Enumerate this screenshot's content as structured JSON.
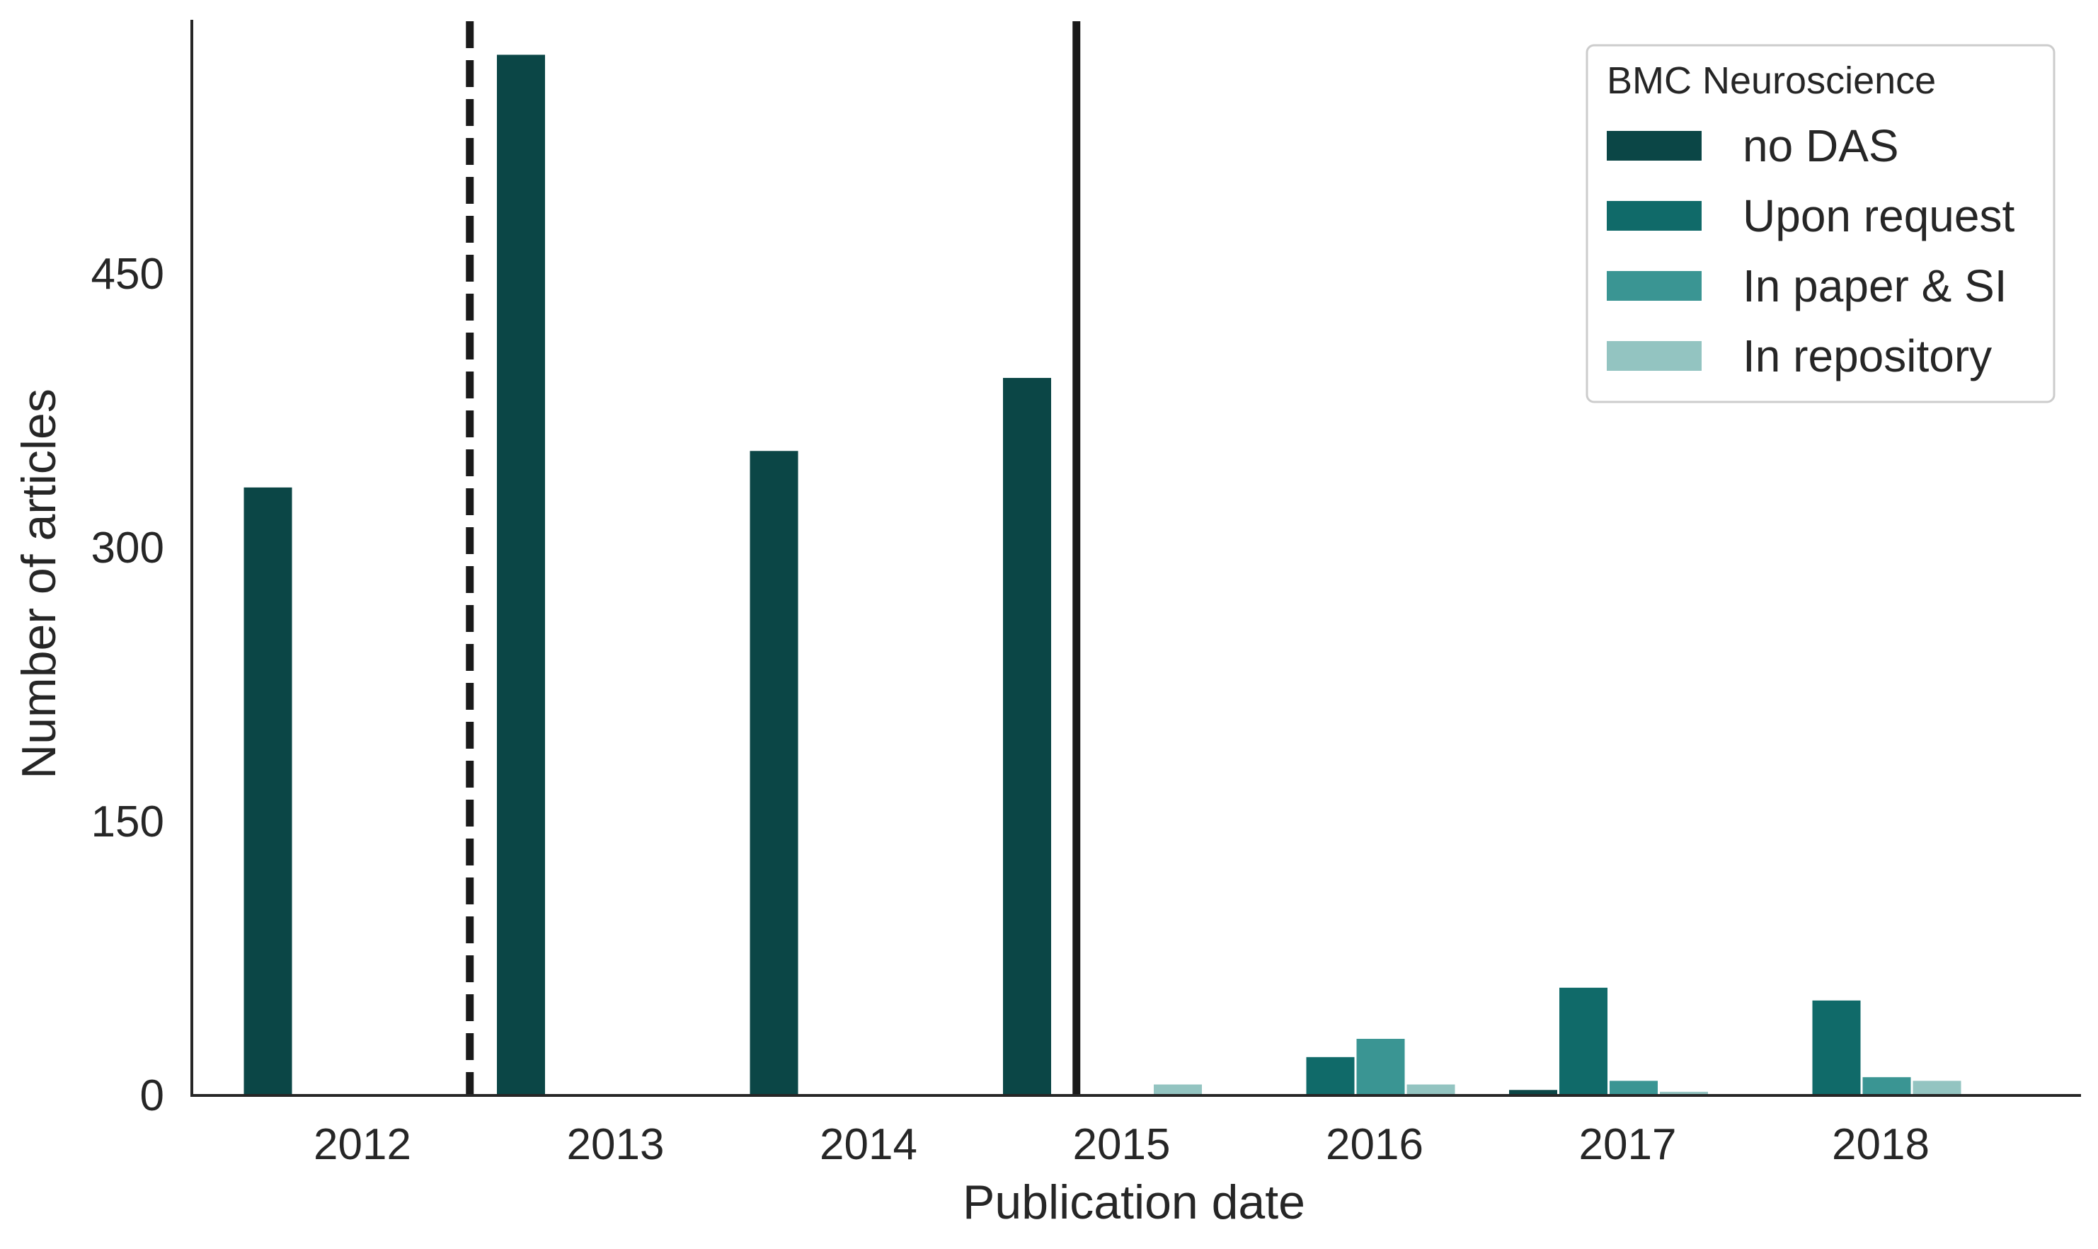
{
  "chart_data": {
    "type": "bar",
    "xlabel": "Publication date",
    "ylabel": "Number of articles",
    "categories": [
      "2012",
      "2013",
      "2014",
      "2015",
      "2016",
      "2017",
      "2018"
    ],
    "yticks": [
      0,
      150,
      300,
      450
    ],
    "ylim": [
      0,
      600
    ],
    "grid": false,
    "legend": {
      "title": "BMC Neuroscience",
      "placement": "top-right"
    },
    "series": [
      {
        "name": "no DAS",
        "color": "#0b4646",
        "values": [
          333,
          570,
          353,
          393,
          0,
          3,
          0
        ]
      },
      {
        "name": "Upon request",
        "color": "#106a69",
        "values": [
          0,
          0,
          0,
          0,
          21,
          59,
          52
        ]
      },
      {
        "name": "In paper & SI",
        "color": "#3a9593",
        "values": [
          0,
          0,
          0,
          0,
          31,
          8,
          10
        ]
      },
      {
        "name": "In repository",
        "color": "#93c4c1",
        "values": [
          0,
          0,
          0,
          6,
          6,
          2,
          8
        ]
      }
    ],
    "reference_lines": [
      {
        "at_category": "2012",
        "offset": 0.5,
        "style": "dashed"
      },
      {
        "at_category": "2015",
        "offset": -0.1,
        "style": "solid"
      }
    ]
  }
}
